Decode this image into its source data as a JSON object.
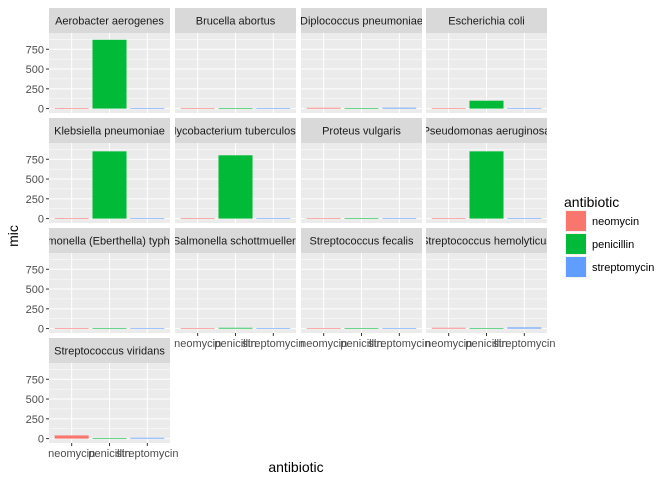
{
  "chart_data": {
    "type": "bar",
    "facet": "bacteria",
    "xlabel": "antibiotic",
    "ylabel": "mic",
    "categories": [
      "neomycin",
      "penicillin",
      "streptomycin"
    ],
    "y_ticks": [
      0,
      250,
      500,
      750
    ],
    "ylim": [
      0,
      900
    ],
    "legend": {
      "title": "antibiotic",
      "position": "right",
      "entries": [
        "neomycin",
        "penicillin",
        "streptomycin"
      ]
    },
    "colors": {
      "neomycin": "#F8766D",
      "penicillin": "#00BA38",
      "streptomycin": "#619CFF",
      "panel_bg": "#EBEBEB",
      "strip_bg": "#D9D9D9",
      "grid": "#FFFFFF"
    },
    "panels": [
      {
        "name": "Aerobacter aerogenes",
        "values": [
          1.6,
          870,
          1
        ]
      },
      {
        "name": "Brucella abortus",
        "values": [
          0.02,
          1,
          2
        ]
      },
      {
        "name": "Diplococcus pneumoniae",
        "values": [
          10,
          0.005,
          11
        ]
      },
      {
        "name": "Escherichia coli",
        "values": [
          0.1,
          100,
          0.4
        ]
      },
      {
        "name": "Klebsiella pneumoniae",
        "values": [
          1,
          850,
          1.2
        ]
      },
      {
        "name": "Mycobacterium tuberculosis",
        "values": [
          2,
          800,
          5
        ]
      },
      {
        "name": "Proteus vulgaris",
        "values": [
          0.1,
          3,
          0.1
        ]
      },
      {
        "name": "Pseudomonas aeruginosa",
        "values": [
          0.4,
          850,
          2
        ]
      },
      {
        "name": "Salmonella (Eberthella) typhosa",
        "values": [
          0.008,
          1,
          0.4
        ]
      },
      {
        "name": "Salmonella schottmuelleri",
        "values": [
          0.09,
          10,
          0.8
        ]
      },
      {
        "name": "Streptococcus fecalis",
        "values": [
          0.1,
          1,
          1
        ]
      },
      {
        "name": "Streptococcus hemolyticus",
        "values": [
          10,
          0.001,
          14
        ]
      },
      {
        "name": "Streptococcus viridans",
        "values": [
          40,
          0.005,
          10
        ]
      }
    ]
  }
}
